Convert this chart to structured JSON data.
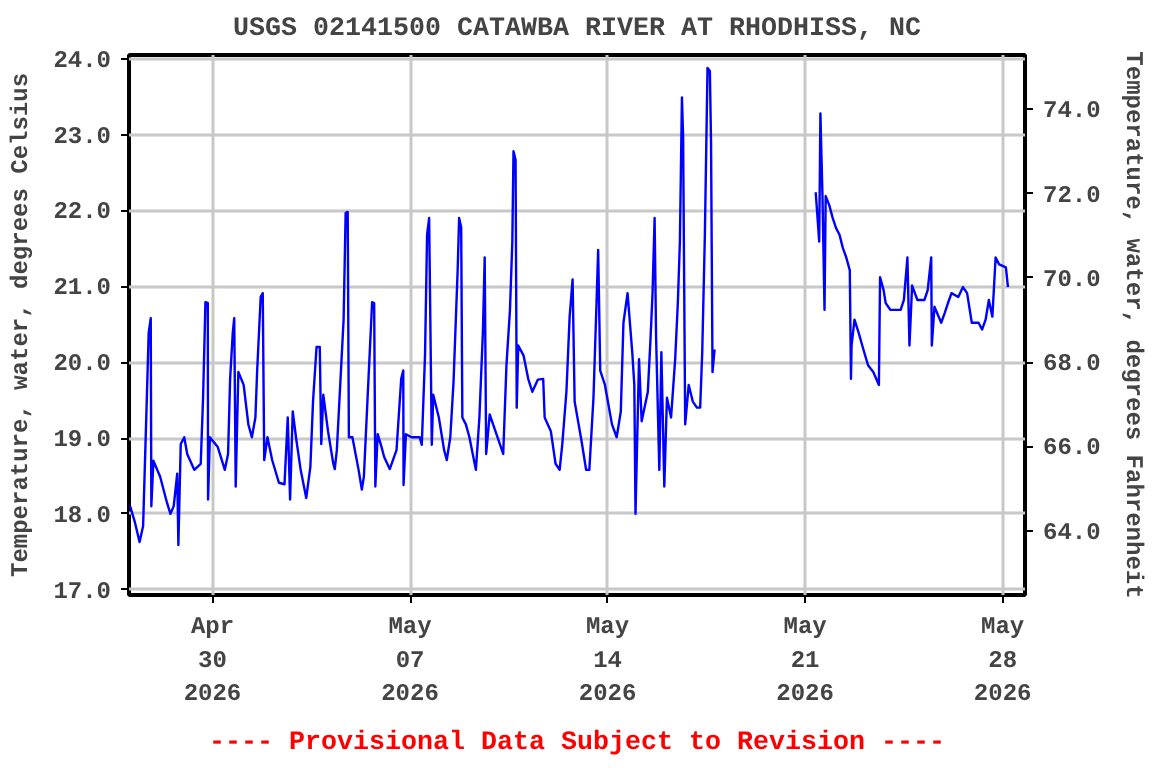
{
  "chart_data": {
    "type": "line",
    "title": "USGS 02141500 CATAWBA RIVER AT RHODHISS, NC",
    "ylabel": "Temperature, water, degrees Celsius",
    "y2label": "Temperature, water, degrees Fahrenheit",
    "annotations": [
      "---- Provisional Data Subject to Revision ----"
    ],
    "grid": true,
    "marker": "none",
    "line_style": "solid",
    "xlim": [
      "2026-04-27T01:00",
      "2026-05-28T19:00"
    ],
    "xticks": [
      {
        "value": "2026-04-30",
        "label": "Apr\n30\n2026"
      },
      {
        "value": "2026-05-07",
        "label": "May\n07\n2026"
      },
      {
        "value": "2026-05-14",
        "label": "May\n14\n2026"
      },
      {
        "value": "2026-05-21",
        "label": "May\n21\n2026"
      },
      {
        "value": "2026-05-28",
        "label": "May\n28\n2026"
      }
    ],
    "ylim": [
      16.93,
      24.05
    ],
    "yticks": [
      {
        "value": 17,
        "label": "17.0"
      },
      {
        "value": 18,
        "label": "18.0"
      },
      {
        "value": 19,
        "label": "19.0"
      },
      {
        "value": 20,
        "label": "20.0"
      },
      {
        "value": 21,
        "label": "21.0"
      },
      {
        "value": 22,
        "label": "22.0"
      },
      {
        "value": 23,
        "label": "23.0"
      },
      {
        "value": 24,
        "label": "24.0"
      }
    ],
    "y2lim": [
      62.47,
      75.29
    ],
    "y2ticks": [
      {
        "value": 64,
        "label": "64.0"
      },
      {
        "value": 66,
        "label": "66.0"
      },
      {
        "value": 68,
        "label": "68.0"
      },
      {
        "value": 70,
        "label": "70.0"
      },
      {
        "value": 72,
        "label": "72.0"
      },
      {
        "value": 74,
        "label": "74.0"
      }
    ],
    "series": [
      {
        "color": "#0000ff",
        "x": [
          "2026-04-27T02:00",
          "2026-04-27T06:00",
          "2026-04-27T10:00",
          "2026-04-27T13:00",
          "2026-04-27T16:00",
          "2026-04-27T17:45",
          "2026-04-27T19:30",
          "2026-04-27T20:00",
          "2026-04-27T21:45",
          "2026-04-28T03:30",
          "2026-04-28T09:15",
          "2026-04-28T12:15",
          "2026-04-28T15:00",
          "2026-04-28T18:00",
          "2026-04-28T19:00",
          "2026-04-28T21:00",
          "2026-04-29T00:00",
          "2026-04-29T02:30",
          "2026-04-29T08:30",
          "2026-04-29T14:00",
          "2026-04-29T16:00",
          "2026-04-29T18:00",
          "2026-04-29T20:00",
          "2026-04-29T20:15",
          "2026-04-29T21:45",
          "2026-04-30T04:30",
          "2026-04-30T10:30",
          "2026-04-30T13:15",
          "2026-04-30T15:00",
          "2026-04-30T17:15",
          "2026-04-30T18:30",
          "2026-04-30T19:45",
          "2026-04-30T22:00",
          "2026-05-01T02:30",
          "2026-05-01T06:30",
          "2026-05-01T09:30",
          "2026-05-01T12:30",
          "2026-05-01T14:00",
          "2026-05-01T17:00",
          "2026-05-01T18:45",
          "2026-05-01T20:00",
          "2026-05-01T22:45",
          "2026-05-02T02:45",
          "2026-05-02T08:30",
          "2026-05-02T13:15",
          "2026-05-02T16:00",
          "2026-05-02T18:00",
          "2026-05-02T20:15",
          "2026-05-02T23:00",
          "2026-05-03T03:00",
          "2026-05-03T07:45",
          "2026-05-03T11:15",
          "2026-05-03T13:30",
          "2026-05-03T16:30",
          "2026-05-03T19:15",
          "2026-05-03T20:30",
          "2026-05-03T22:15",
          "2026-05-04T02:15",
          "2026-05-04T06:45",
          "2026-05-04T08:00",
          "2026-05-04T09:45",
          "2026-05-04T12:30",
          "2026-05-04T15:30",
          "2026-05-04T17:15",
          "2026-05-04T19:00",
          "2026-05-04T20:00",
          "2026-05-04T23:00",
          "2026-05-05T04:15",
          "2026-05-05T07:00",
          "2026-05-05T08:45",
          "2026-05-05T11:45",
          "2026-05-05T15:45",
          "2026-05-05T17:30",
          "2026-05-05T18:30",
          "2026-05-05T20:30",
          "2026-05-05T23:15",
          "2026-05-06T02:00",
          "2026-05-06T06:45",
          "2026-05-06T12:30",
          "2026-05-06T16:30",
          "2026-05-06T18:15",
          "2026-05-06T18:30",
          "2026-05-06T20:30",
          "2026-05-07T01:15",
          "2026-05-07T08:15",
          "2026-05-07T10:00",
          "2026-05-07T12:45",
          "2026-05-07T14:30",
          "2026-05-07T16:15",
          "2026-05-07T18:30",
          "2026-05-07T19:45",
          "2026-05-08T00:30",
          "2026-05-08T05:00",
          "2026-05-08T07:15",
          "2026-05-08T10:15",
          "2026-05-08T13:00",
          "2026-05-08T16:30",
          "2026-05-08T17:45",
          "2026-05-08T19:30",
          "2026-05-08T20:30",
          "2026-05-08T23:30",
          "2026-05-09T02:30",
          "2026-05-09T08:00",
          "2026-05-09T11:00",
          "2026-05-09T14:00",
          "2026-05-09T15:30",
          "2026-05-09T16:45",
          "2026-05-09T19:45",
          "2026-05-10T01:30",
          "2026-05-10T07:15",
          "2026-05-10T10:00",
          "2026-05-10T13:00",
          "2026-05-10T15:00",
          "2026-05-10T16:00",
          "2026-05-10T17:45",
          "2026-05-10T18:45",
          "2026-05-10T20:00",
          "2026-05-11T00:30",
          "2026-05-11T04:30",
          "2026-05-11T08:00",
          "2026-05-11T12:45",
          "2026-05-11T17:15",
          "2026-05-11T18:30",
          "2026-05-11T23:45",
          "2026-05-12T03:45",
          "2026-05-12T07:15",
          "2026-05-12T09:30",
          "2026-05-12T13:00",
          "2026-05-12T15:45",
          "2026-05-12T18:15",
          "2026-05-12T20:00",
          "2026-05-13T01:45",
          "2026-05-13T05:45",
          "2026-05-13T08:30",
          "2026-05-13T12:00",
          "2026-05-13T14:30",
          "2026-05-13T16:00",
          "2026-05-13T17:45",
          "2026-05-13T21:45",
          "2026-05-14T03:45",
          "2026-05-14T07:45",
          "2026-05-14T11:15",
          "2026-05-14T13:30",
          "2026-05-14T17:00",
          "2026-05-14T19:15",
          "2026-05-14T21:00",
          "2026-05-14T22:45",
          "2026-05-14T23:45",
          "2026-05-15T02:45",
          "2026-05-15T05:00",
          "2026-05-15T10:15",
          "2026-05-15T12:30",
          "2026-05-15T14:15",
          "2026-05-15T16:00",
          "2026-05-15T17:15",
          "2026-05-15T20:00",
          "2026-05-15T21:45",
          "2026-05-16T00:15",
          "2026-05-16T02:30",
          "2026-05-16T06:00",
          "2026-05-16T09:30",
          "2026-05-16T11:45",
          "2026-05-16T13:30",
          "2026-05-16T15:15",
          "2026-05-16T16:15",
          "2026-05-16T18:00",
          "2026-05-16T21:00",
          "2026-05-17T00:30",
          "2026-05-17T04:00",
          "2026-05-17T06:45",
          "2026-05-17T08:30",
          "2026-05-17T10:45",
          "2026-05-17T13:00",
          "2026-05-17T15:00",
          "2026-05-17T16:00",
          "2026-05-17T17:15",
          "2026-05-17T19:00",
          "2026-05-19T12:00",
          "2026-05-21T09:00",
          "2026-05-21T12:00",
          "2026-05-21T13:00",
          "2026-05-21T14:45",
          "2026-05-21T16:30",
          "2026-05-21T17:30",
          "2026-05-21T20:30",
          "2026-05-21T23:30",
          "2026-05-22T02:15",
          "2026-05-22T05:15",
          "2026-05-22T08:00",
          "2026-05-22T11:00",
          "2026-05-22T14:00",
          "2026-05-22T15:00",
          "2026-05-22T15:30",
          "2026-05-22T18:00",
          "2026-05-22T21:30",
          "2026-05-23T01:30",
          "2026-05-23T05:30",
          "2026-05-23T10:00",
          "2026-05-23T14:45",
          "2026-05-23T15:45",
          "2026-05-23T18:45",
          "2026-05-23T20:30",
          "2026-05-24T00:30",
          "2026-05-24T09:15",
          "2026-05-24T12:00",
          "2026-05-24T15:00",
          "2026-05-24T16:45",
          "2026-05-24T19:00",
          "2026-05-24T23:30",
          "2026-05-25T05:30",
          "2026-05-25T08:15",
          "2026-05-25T11:15",
          "2026-05-25T11:45",
          "2026-05-25T14:00",
          "2026-05-25T19:45",
          "2026-05-25T22:45",
          "2026-05-26T01:30",
          "2026-05-26T04:30",
          "2026-05-26T10:15",
          "2026-05-26T14:15",
          "2026-05-26T17:45",
          "2026-05-26T21:45",
          "2026-05-27T03:30",
          "2026-05-27T06:30",
          "2026-05-27T09:30",
          "2026-05-27T12:15",
          "2026-05-27T15:15",
          "2026-05-27T18:00",
          "2026-05-27T21:00",
          "2026-05-28T02:45",
          "2026-05-28T04:30"
        ],
        "values": [
          18.1,
          17.89,
          17.63,
          17.84,
          19.44,
          20.39,
          20.58,
          18.1,
          18.7,
          18.49,
          18.15,
          18.0,
          18.1,
          18.53,
          17.59,
          18.92,
          19.01,
          18.79,
          18.58,
          18.66,
          19.53,
          20.79,
          20.78,
          18.19,
          19.01,
          18.88,
          18.58,
          18.79,
          19.78,
          20.39,
          20.58,
          18.36,
          19.87,
          19.7,
          19.18,
          19.01,
          19.27,
          19.89,
          20.86,
          20.91,
          18.71,
          19.01,
          18.71,
          18.41,
          18.39,
          19.27,
          18.19,
          19.35,
          19.01,
          18.58,
          18.21,
          18.62,
          19.48,
          20.2,
          20.2,
          18.92,
          19.57,
          19.09,
          18.66,
          18.59,
          18.84,
          19.66,
          20.56,
          21.97,
          21.98,
          19.01,
          19.01,
          18.58,
          18.32,
          18.49,
          19.48,
          20.79,
          20.78,
          18.36,
          19.05,
          18.91,
          18.75,
          18.59,
          18.84,
          19.78,
          19.89,
          18.38,
          19.05,
          19.01,
          19.01,
          18.91,
          20.09,
          21.68,
          21.9,
          18.91,
          19.57,
          19.27,
          18.84,
          18.71,
          19.01,
          19.74,
          21.21,
          21.9,
          21.78,
          19.27,
          19.18,
          19.01,
          18.58,
          19.27,
          20.41,
          21.38,
          18.79,
          19.31,
          19.05,
          18.79,
          19.96,
          20.69,
          21.59,
          22.78,
          22.67,
          19.4,
          20.22,
          20.09,
          19.78,
          19.61,
          19.77,
          19.78,
          19.27,
          19.09,
          18.66,
          18.58,
          18.92,
          19.61,
          20.6,
          21.09,
          19.48,
          18.97,
          18.58,
          18.58,
          19.53,
          20.73,
          21.48,
          19.89,
          19.7,
          19.18,
          19.01,
          19.35,
          20.52,
          20.91,
          20.47,
          20.13,
          19.7,
          18.0,
          20.04,
          19.22,
          19.61,
          20.3,
          20.91,
          21.9,
          20.34,
          18.58,
          20.13,
          18.36,
          19.53,
          19.27,
          20.04,
          20.78,
          21.59,
          23.49,
          22.97,
          19.18,
          19.7,
          19.48,
          19.4,
          19.4,
          20.13,
          21.68,
          23.88,
          23.84,
          22.89,
          19.87,
          20.17,
          null,
          22.24,
          21.59,
          23.28,
          22.2,
          20.69,
          22.19,
          22.07,
          21.9,
          21.77,
          21.68,
          21.51,
          21.38,
          21.21,
          19.78,
          20.22,
          20.56,
          20.39,
          20.17,
          19.96,
          19.87,
          19.7,
          21.12,
          20.95,
          20.78,
          20.69,
          20.69,
          20.82,
          21.38,
          20.22,
          21.01,
          20.82,
          20.82,
          20.95,
          21.38,
          20.22,
          20.73,
          20.52,
          20.65,
          20.78,
          20.91,
          20.86,
          20.99,
          20.91,
          20.52,
          20.52,
          20.43,
          20.56,
          20.82,
          20.6,
          21.38,
          21.29,
          21.25,
          20.99
        ]
      }
    ]
  }
}
